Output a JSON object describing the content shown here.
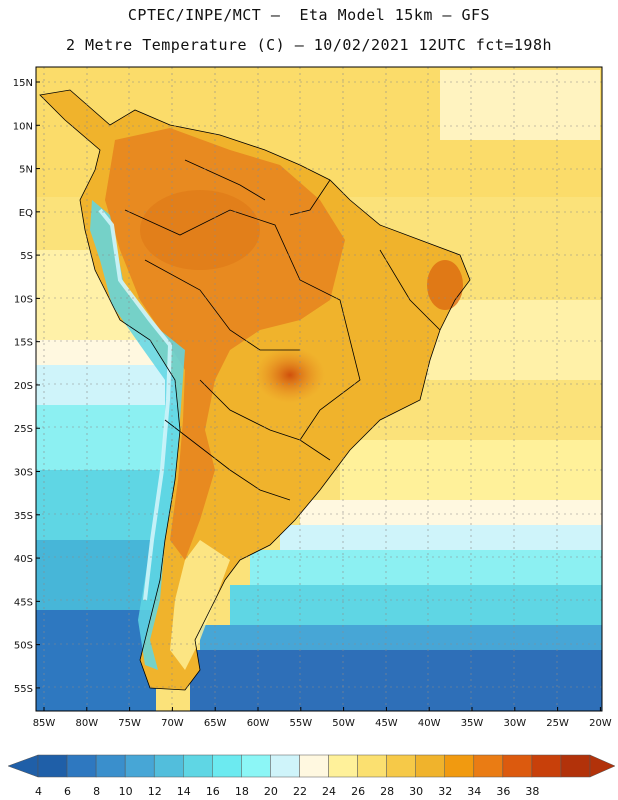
{
  "header": {
    "line1": "CPTEC/INPE/MCT –  Eta Model 15km – GFS",
    "line2": "2 Metre Temperature (C) – 10/02/2021 12UTC fct=198h"
  },
  "map": {
    "region": "South America",
    "variable": "2 Metre Temperature",
    "units": "C",
    "lat_labels": [
      "15N",
      "10N",
      "5N",
      "EQ",
      "5S",
      "10S",
      "15S",
      "20S",
      "25S",
      "30S",
      "35S",
      "40S",
      "45S",
      "50S",
      "55S"
    ],
    "lon_labels": [
      "85W",
      "80W",
      "75W",
      "70W",
      "65W",
      "60W",
      "55W",
      "50W",
      "45W",
      "40W",
      "35W",
      "30W",
      "25W",
      "20W"
    ]
  },
  "colorbar": {
    "labels": [
      "4",
      "6",
      "8",
      "10",
      "12",
      "14",
      "16",
      "18",
      "20",
      "22",
      "24",
      "26",
      "28",
      "30",
      "32",
      "34",
      "36",
      "38"
    ],
    "colors": [
      "#1f5fa8",
      "#2e78c0",
      "#3a8fcc",
      "#47a6d6",
      "#52bedc",
      "#5fd6e4",
      "#6ceaf0",
      "#8cf6f6",
      "#cff4fa",
      "#fff8e0",
      "#fff19a",
      "#fbe070",
      "#f6c948",
      "#f0b32c",
      "#f19a10",
      "#ea7c14",
      "#dc5a0e",
      "#c8400a",
      "#b2320a"
    ]
  }
}
